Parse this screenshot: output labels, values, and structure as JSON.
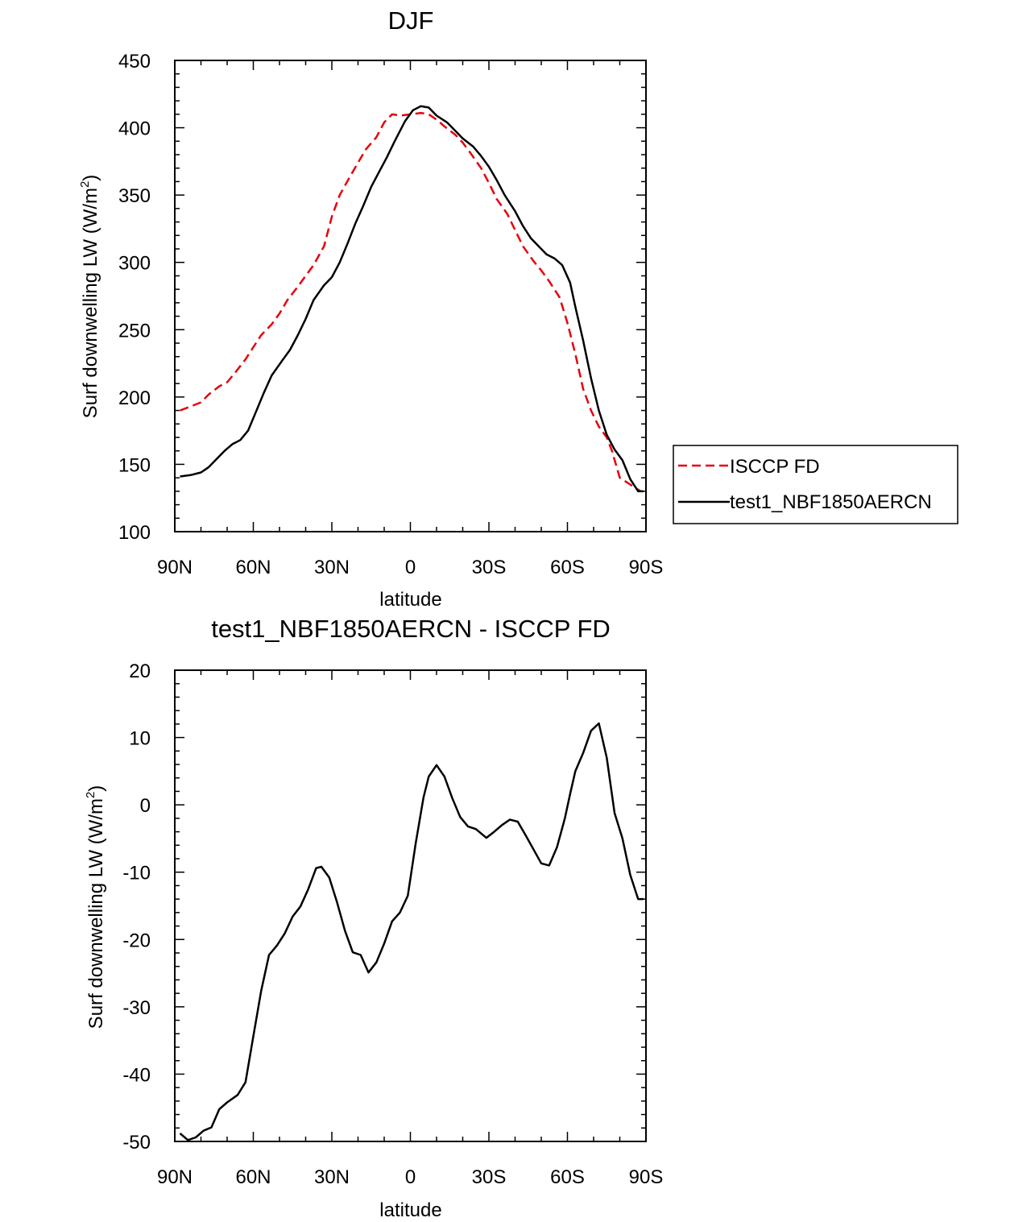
{
  "chart_data": [
    {
      "type": "line",
      "title": "DJF",
      "xlabel": "latitude",
      "ylabel": "Surf downwelling LW (W/m",
      "ylabel_superscript": "2",
      "ylabel_suffix": ")",
      "xlim": [
        90,
        -90
      ],
      "ylim": [
        100,
        450
      ],
      "yticks": [
        100,
        150,
        200,
        250,
        300,
        350,
        400,
        450
      ],
      "xticks": [
        {
          "value": 90,
          "label": "90N"
        },
        {
          "value": 60,
          "label": "60N"
        },
        {
          "value": 30,
          "label": "30N"
        },
        {
          "value": 0,
          "label": "0"
        },
        {
          "value": -30,
          "label": "30S"
        },
        {
          "value": -60,
          "label": "60S"
        },
        {
          "value": -90,
          "label": "90S"
        }
      ],
      "legend": {
        "position": "right",
        "entries": [
          "ISCCP FD",
          "test1_NBF1850AERCN"
        ]
      },
      "series": [
        {
          "name": "ISCCP FD",
          "color": "#e8000b",
          "dash": "dashed",
          "lat": [
            88,
            84,
            80,
            77,
            73,
            70,
            67,
            63,
            60,
            57,
            53,
            50,
            47,
            43,
            40,
            37,
            33,
            30,
            27,
            23,
            20,
            17,
            13,
            10,
            7,
            4,
            0,
            -4,
            -7,
            -10,
            -13,
            -17,
            -20,
            -23,
            -27,
            -30,
            -33,
            -37,
            -40,
            -43,
            -47,
            -50,
            -53,
            -57,
            -60,
            -63,
            -66,
            -69,
            -72,
            -75,
            -77,
            -80,
            -84,
            -88
          ],
          "values": [
            190,
            193,
            196,
            202,
            208,
            211,
            218,
            228,
            237,
            246,
            254,
            262,
            272,
            282,
            290,
            298,
            312,
            334,
            350,
            364,
            374,
            384,
            393,
            404,
            410,
            409,
            410,
            411,
            410,
            406,
            401,
            395,
            389,
            381,
            370,
            359,
            347,
            336,
            324,
            312,
            301,
            294,
            286,
            274,
            255,
            232,
            206,
            190,
            178,
            170,
            160,
            140,
            135,
            130
          ]
        },
        {
          "name": "test1_NBF1850AERCN",
          "color": "#000000",
          "dash": "solid",
          "lat": [
            88,
            84,
            80,
            77,
            74,
            71,
            68,
            65,
            62,
            59,
            56,
            53,
            49,
            46,
            43,
            40,
            37,
            33,
            30,
            27,
            24,
            21,
            18,
            15,
            12,
            9,
            6,
            2,
            -1,
            -4,
            -7,
            -10,
            -14,
            -17,
            -20,
            -24,
            -27,
            -30,
            -33,
            -36,
            -40,
            -43,
            -46,
            -49,
            -52,
            -55,
            -58,
            -61,
            -63,
            -66,
            -69,
            -72,
            -75,
            -78,
            -81,
            -84,
            -87,
            -89
          ],
          "values": [
            141,
            142,
            144,
            148,
            154,
            160,
            165,
            168,
            175,
            189,
            203,
            216,
            227,
            235,
            246,
            258,
            272,
            283,
            289,
            300,
            314,
            329,
            342,
            356,
            367,
            378,
            390,
            405,
            413,
            416,
            415,
            409,
            404,
            398,
            392,
            386,
            379,
            371,
            361,
            350,
            338,
            327,
            318,
            312,
            306,
            303,
            298,
            285,
            267,
            242,
            214,
            190,
            172,
            161,
            153,
            139,
            130,
            130
          ]
        }
      ]
    },
    {
      "type": "line",
      "title": "test1_NBF1850AERCN - ISCCP FD",
      "xlabel": "latitude",
      "ylabel": "Surf downwelling LW (W/m",
      "ylabel_superscript": "2",
      "ylabel_suffix": ")",
      "xlim": [
        90,
        -90
      ],
      "ylim": [
        -50,
        20
      ],
      "yticks": [
        -50,
        -40,
        -30,
        -20,
        -10,
        0,
        10,
        20
      ],
      "xticks": [
        {
          "value": 90,
          "label": "90N"
        },
        {
          "value": 60,
          "label": "60N"
        },
        {
          "value": 30,
          "label": "30N"
        },
        {
          "value": 0,
          "label": "0"
        },
        {
          "value": -30,
          "label": "30S"
        },
        {
          "value": -60,
          "label": "60S"
        },
        {
          "value": -90,
          "label": "90S"
        }
      ],
      "series": [
        {
          "name": "test1_NBF1850AERCN - ISCCP FD",
          "color": "#000000",
          "dash": "solid",
          "lat": [
            88,
            85,
            82,
            79,
            76,
            73,
            70,
            66,
            63,
            60,
            57,
            54,
            51,
            48,
            45,
            42,
            39,
            36,
            34,
            31,
            28,
            25,
            22,
            19,
            16,
            13,
            10,
            7,
            4,
            1,
            -2,
            -5,
            -7,
            -10,
            -13,
            -16,
            -19,
            -22,
            -25,
            -29,
            -32,
            -35,
            -38,
            -41,
            -44,
            -47,
            -50,
            -53,
            -56,
            -59,
            -61,
            -63,
            -66,
            -69,
            -72,
            -75,
            -78,
            -81,
            -84,
            -87,
            -89
          ],
          "values": [
            -48.8,
            -49.8,
            -49.4,
            -48.4,
            -47.9,
            -45.2,
            -44.2,
            -43.1,
            -41.2,
            -34.4,
            -27.6,
            -22.3,
            -20.9,
            -19.1,
            -16.6,
            -15.1,
            -12.5,
            -9.4,
            -9.2,
            -10.8,
            -14.5,
            -18.7,
            -21.9,
            -22.3,
            -24.9,
            -23.4,
            -20.6,
            -17.3,
            -16.0,
            -13.5,
            -5.8,
            1.1,
            4.2,
            5.9,
            4.2,
            1.0,
            -1.8,
            -3.2,
            -3.6,
            -4.9,
            -4.0,
            -3.0,
            -2.2,
            -2.5,
            -4.5,
            -6.6,
            -8.7,
            -9.0,
            -6.3,
            -2.0,
            1.6,
            5.0,
            7.7,
            11.0,
            12.1,
            7.0,
            -1.2,
            -5.0,
            -10.4,
            -14.0,
            -14.0
          ]
        }
      ]
    }
  ]
}
